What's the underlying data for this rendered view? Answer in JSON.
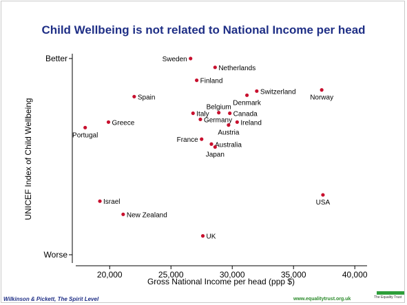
{
  "slide": {
    "title": "Child Wellbeing is not related to National Income per head",
    "source": "Wilkinson & Pickett, The Spirit Level",
    "website": "www.equalitytrust.org.uk",
    "logo_text": "The Equality Trust",
    "colors": {
      "title": "#1f2f86",
      "point": "#c8102e",
      "website": "#2a8a2a",
      "logo": "#2e9e3a"
    }
  },
  "chart_data": {
    "type": "scatter",
    "title": "",
    "xlabel": "Gross National Income per head (ppp $)",
    "ylabel": "UNICEF Index of Child Wellbeing",
    "xlim": [
      17400,
      41000
    ],
    "ylim": [
      0,
      100
    ],
    "xticks": [
      20000,
      25000,
      30000,
      35000,
      40000
    ],
    "xtick_labels": [
      "20,000",
      "25,000",
      "30,000",
      "35,000",
      "40,000"
    ],
    "yticks": [
      100,
      0
    ],
    "ytick_labels": [
      "Better",
      "Worse"
    ],
    "grid": false,
    "points": [
      {
        "label": "Sweden",
        "x": 26600,
        "y": 100,
        "anchor": "left"
      },
      {
        "label": "Netherlands",
        "x": 28600,
        "y": 95.5,
        "anchor": "right"
      },
      {
        "label": "Finland",
        "x": 27100,
        "y": 88.9,
        "anchor": "right"
      },
      {
        "label": "Switzerland",
        "x": 32000,
        "y": 83.4,
        "anchor": "right"
      },
      {
        "label": "Norway",
        "x": 37300,
        "y": 84.0,
        "anchor": "below"
      },
      {
        "label": "Denmark",
        "x": 31200,
        "y": 81.3,
        "anchor": "below"
      },
      {
        "label": "Spain",
        "x": 22000,
        "y": 80.6,
        "anchor": "right"
      },
      {
        "label": "Belgium",
        "x": 28900,
        "y": 72.4,
        "anchor": "above"
      },
      {
        "label": "Italy",
        "x": 26800,
        "y": 72.1,
        "anchor": "right"
      },
      {
        "label": "Canada",
        "x": 29800,
        "y": 72.1,
        "anchor": "right"
      },
      {
        "label": "Germany",
        "x": 27400,
        "y": 69.0,
        "anchor": "right"
      },
      {
        "label": "Ireland",
        "x": 30400,
        "y": 67.6,
        "anchor": "right"
      },
      {
        "label": "Austria",
        "x": 29700,
        "y": 66.1,
        "anchor": "below"
      },
      {
        "label": "Greece",
        "x": 19900,
        "y": 67.6,
        "anchor": "right"
      },
      {
        "label": "Portugal",
        "x": 18000,
        "y": 64.8,
        "anchor": "below"
      },
      {
        "label": "France",
        "x": 27500,
        "y": 58.9,
        "anchor": "left"
      },
      {
        "label": "Australia",
        "x": 28300,
        "y": 56.4,
        "anchor": "right"
      },
      {
        "label": "Japan",
        "x": 28600,
        "y": 54.9,
        "anchor": "below"
      },
      {
        "label": "USA",
        "x": 37400,
        "y": 30.5,
        "anchor": "below"
      },
      {
        "label": "Israel",
        "x": 19200,
        "y": 27.3,
        "anchor": "right"
      },
      {
        "label": "New Zealand",
        "x": 21100,
        "y": 20.6,
        "anchor": "right"
      },
      {
        "label": "UK",
        "x": 27600,
        "y": 9.6,
        "anchor": "right"
      }
    ]
  }
}
